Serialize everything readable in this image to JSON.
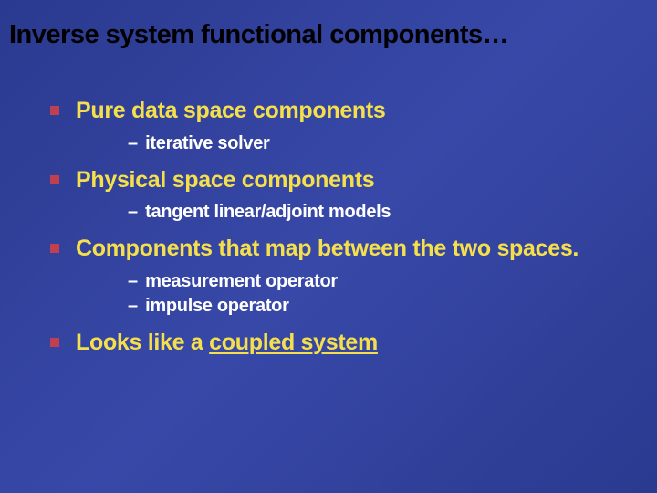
{
  "slide": {
    "title": "Inverse system functional components…",
    "background_gradient": [
      "#2a3a8f",
      "#3848a8",
      "#2a3a8f"
    ],
    "title_color": "#000000",
    "title_fontsize": 29,
    "main_bullet_color": "#c04050",
    "main_text_color": "#f5e04c",
    "main_fontsize": 25,
    "sub_text_color": "#ffffff",
    "sub_fontsize": 20,
    "items": [
      {
        "text": "Pure data space components",
        "subs": [
          {
            "text": "iterative solver"
          }
        ]
      },
      {
        "text": "Physical space components",
        "subs": [
          {
            "text": "tangent linear/adjoint models"
          }
        ]
      },
      {
        "text": "Components that map between the two spaces.",
        "subs": [
          {
            "text": "measurement operator"
          },
          {
            "text": "impulse operator"
          }
        ]
      },
      {
        "text_prefix": "Looks like a ",
        "text_underlined": "coupled system",
        "has_underline": true,
        "subs": []
      }
    ]
  }
}
